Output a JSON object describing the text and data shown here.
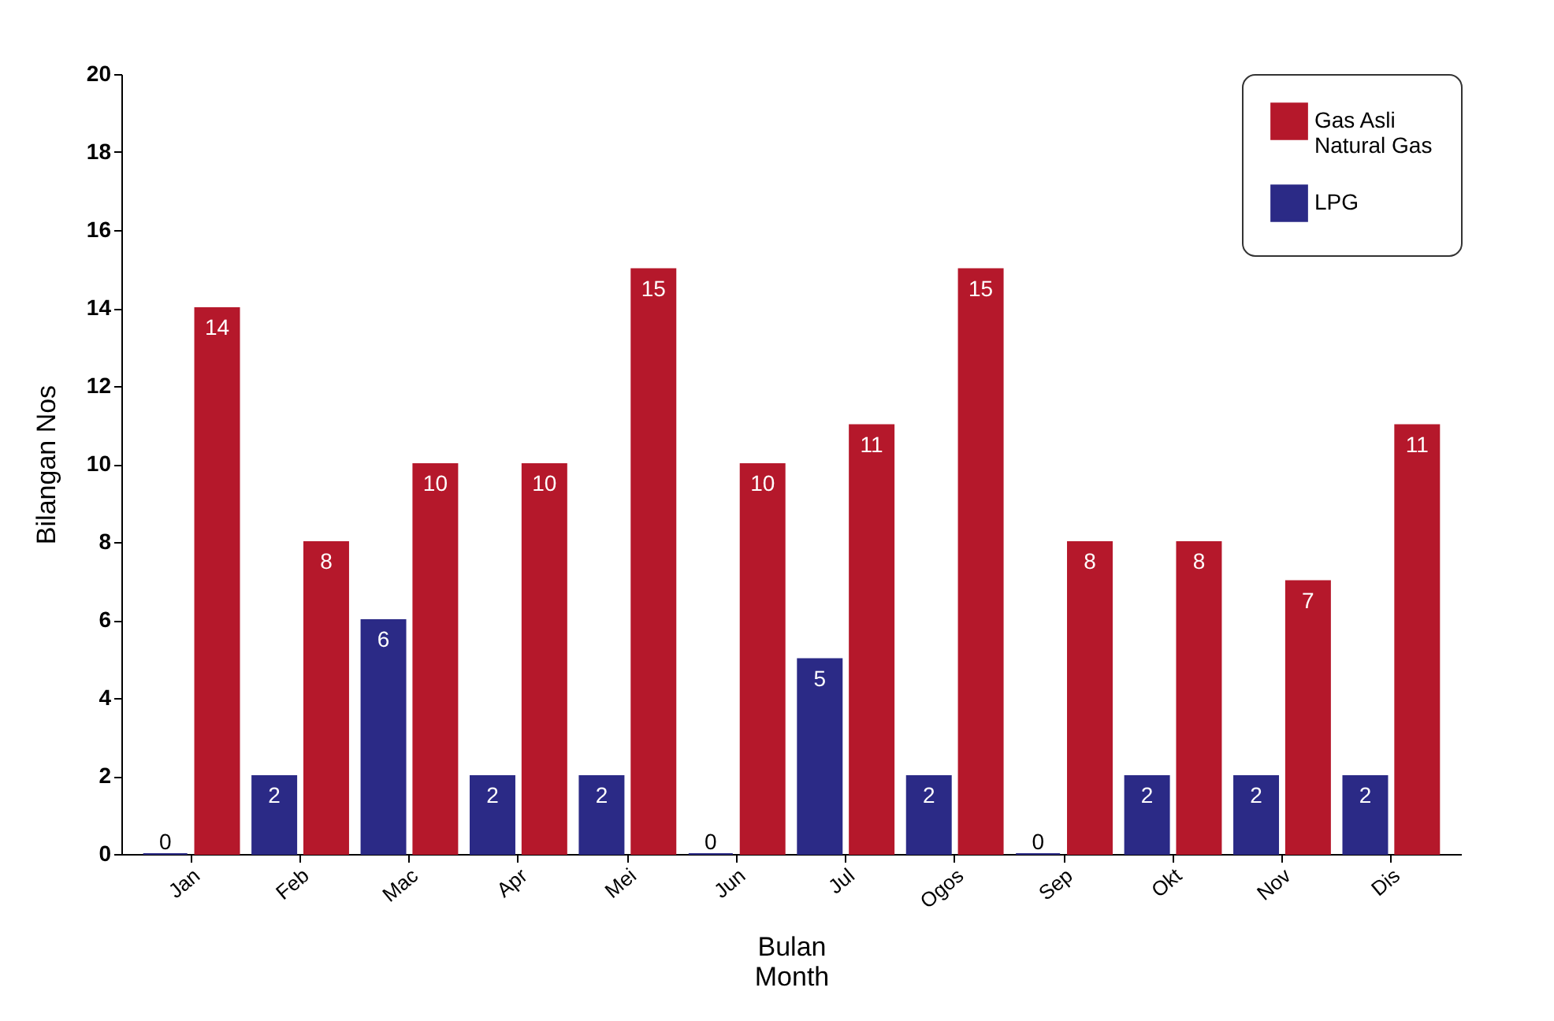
{
  "chart_data": {
    "type": "bar",
    "xlabel": "Bulan\nMonth",
    "ylabel": "Bilangan Nos",
    "categories": [
      "Jan",
      "Feb",
      "Mac",
      "Apr",
      "Mei",
      "Jun",
      "Jul",
      "Ogos",
      "Sep",
      "Okt",
      "Nov",
      "Dis"
    ],
    "series": [
      {
        "name": "Gas Asli\nNatural Gas",
        "color": "#b5182b",
        "values": [
          14,
          8,
          10,
          10,
          15,
          10,
          11,
          15,
          8,
          8,
          7,
          11
        ]
      },
      {
        "name": "LPG",
        "color": "#2b2a86",
        "values": [
          0,
          2,
          6,
          2,
          2,
          0,
          5,
          2,
          0,
          2,
          2,
          2
        ]
      }
    ],
    "ylim": [
      0,
      20
    ],
    "yticks": [
      0,
      2,
      4,
      6,
      8,
      10,
      12,
      14,
      16,
      18,
      20
    ],
    "data_labels": true,
    "legend": "top right",
    "grid": false
  }
}
